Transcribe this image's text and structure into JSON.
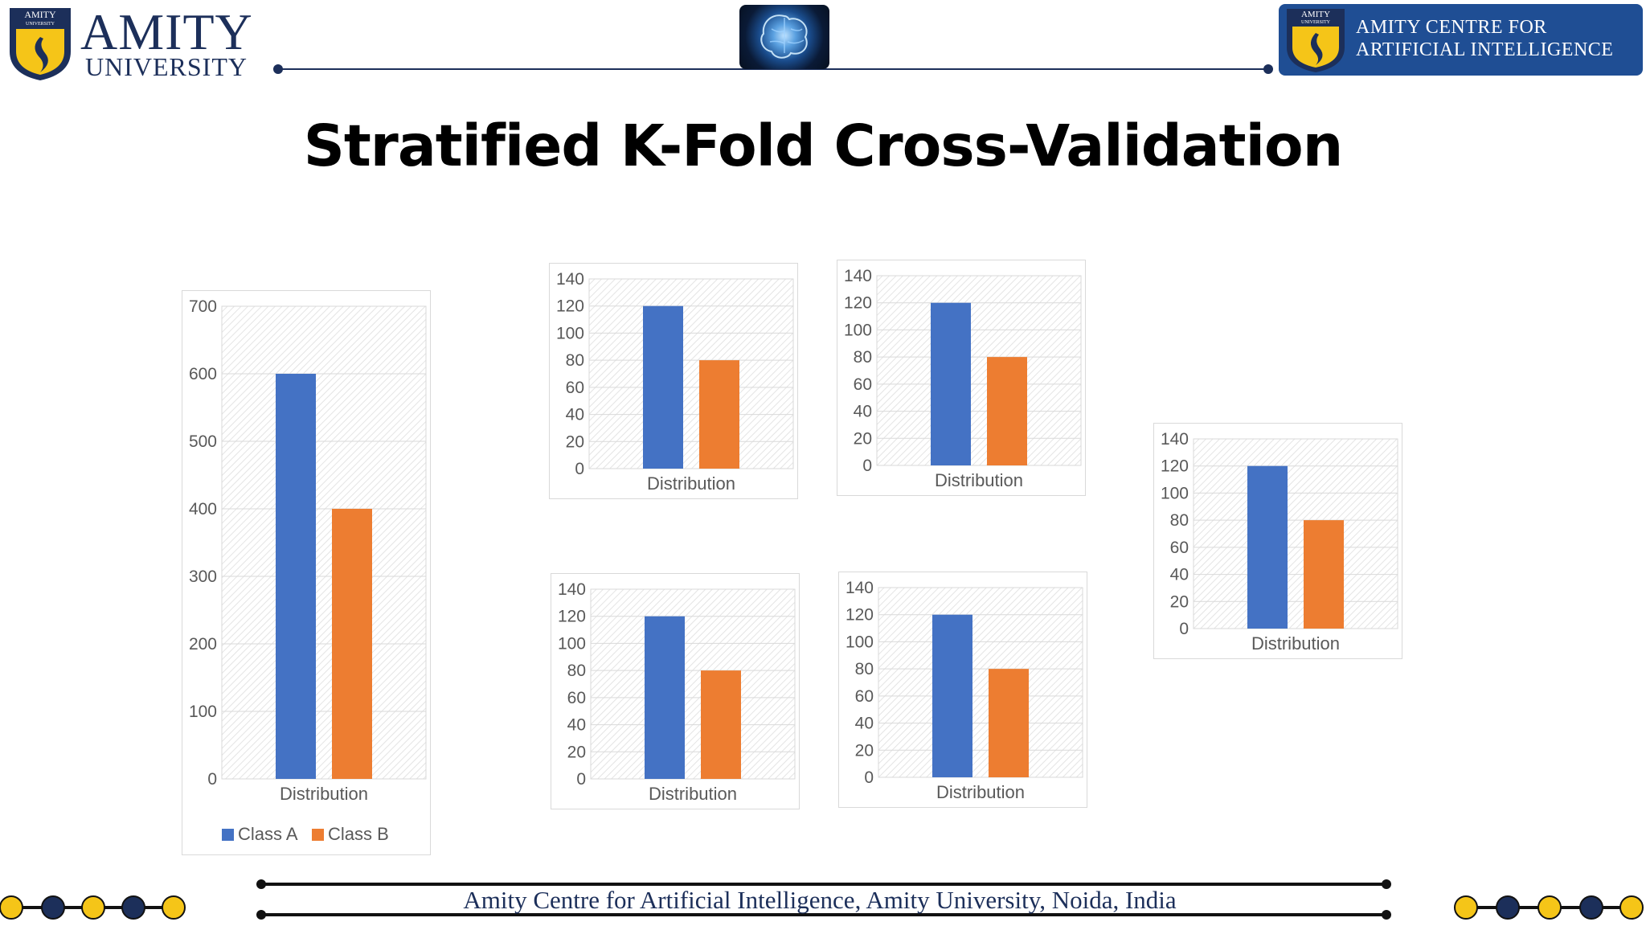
{
  "header": {
    "university_logo": {
      "badge_text": "AMITY",
      "badge_sub": "UNIVERSITY",
      "word": "AMITY",
      "sub": "UNIVERSITY"
    },
    "centre_logo": {
      "badge_text": "AMITY",
      "badge_sub": "UNIVERSITY",
      "line1": "AMITY CENTRE FOR",
      "line2": "ARTIFICIAL INTELLIGENCE"
    }
  },
  "title": "Stratified K-Fold Cross-Validation",
  "footer": {
    "text": "Amity Centre for Artificial Intelligence, Amity University, Noida, India"
  },
  "colors": {
    "class_a": "#4472c4",
    "class_b": "#ed7d31",
    "navy": "#1c2f5a",
    "gold": "#f5c518"
  },
  "chart_data": [
    {
      "id": "full-dataset",
      "type": "bar",
      "categories": [
        "Distribution"
      ],
      "series": [
        {
          "name": "Class A",
          "values": [
            600
          ]
        },
        {
          "name": "Class B",
          "values": [
            400
          ]
        }
      ],
      "ylim": [
        0,
        700
      ],
      "yticks": [
        0,
        100,
        200,
        300,
        400,
        500,
        600,
        700
      ],
      "legend": "bottom",
      "grid": true
    },
    {
      "id": "fold-1",
      "type": "bar",
      "categories": [
        "Distribution"
      ],
      "series": [
        {
          "name": "Class A",
          "values": [
            120
          ]
        },
        {
          "name": "Class B",
          "values": [
            80
          ]
        }
      ],
      "ylim": [
        0,
        140
      ],
      "yticks": [
        0,
        20,
        40,
        60,
        80,
        100,
        120,
        140
      ],
      "legend": "none",
      "grid": true
    },
    {
      "id": "fold-2",
      "type": "bar",
      "categories": [
        "Distribution"
      ],
      "series": [
        {
          "name": "Class A",
          "values": [
            120
          ]
        },
        {
          "name": "Class B",
          "values": [
            80
          ]
        }
      ],
      "ylim": [
        0,
        140
      ],
      "yticks": [
        0,
        20,
        40,
        60,
        80,
        100,
        120,
        140
      ],
      "legend": "none",
      "grid": true
    },
    {
      "id": "fold-3",
      "type": "bar",
      "categories": [
        "Distribution"
      ],
      "series": [
        {
          "name": "Class A",
          "values": [
            120
          ]
        },
        {
          "name": "Class B",
          "values": [
            80
          ]
        }
      ],
      "ylim": [
        0,
        140
      ],
      "yticks": [
        0,
        20,
        40,
        60,
        80,
        100,
        120,
        140
      ],
      "legend": "none",
      "grid": true
    },
    {
      "id": "fold-4",
      "type": "bar",
      "categories": [
        "Distribution"
      ],
      "series": [
        {
          "name": "Class A",
          "values": [
            120
          ]
        },
        {
          "name": "Class B",
          "values": [
            80
          ]
        }
      ],
      "ylim": [
        0,
        140
      ],
      "yticks": [
        0,
        20,
        40,
        60,
        80,
        100,
        120,
        140
      ],
      "legend": "none",
      "grid": true
    },
    {
      "id": "fold-5",
      "type": "bar",
      "categories": [
        "Distribution"
      ],
      "series": [
        {
          "name": "Class A",
          "values": [
            120
          ]
        },
        {
          "name": "Class B",
          "values": [
            80
          ]
        }
      ],
      "ylim": [
        0,
        140
      ],
      "yticks": [
        0,
        20,
        40,
        60,
        80,
        100,
        120,
        140
      ],
      "legend": "none",
      "grid": true
    }
  ]
}
